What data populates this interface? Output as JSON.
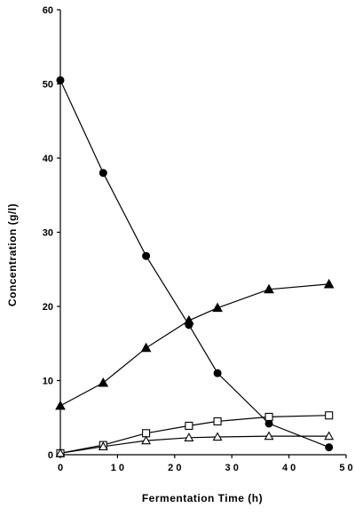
{
  "chart_data": {
    "type": "line",
    "title": "",
    "xlabel": "Fermentation  Time  (h)",
    "ylabel": "Concentration  (g/l)",
    "xlim": [
      0,
      50
    ],
    "ylim": [
      0,
      60
    ],
    "x_ticks": [
      0,
      10,
      20,
      30,
      40,
      50
    ],
    "y_ticks": [
      0,
      10,
      20,
      30,
      40,
      50,
      60
    ],
    "x_tick_labels": [
      "0",
      "1 0",
      "2 0",
      "3 0",
      "4 0",
      "5 0"
    ],
    "y_tick_labels": [
      "0",
      "10",
      "20",
      "30",
      "40",
      "50",
      "60"
    ],
    "grid": false,
    "legend": "none",
    "series": [
      {
        "marker": "filled-circle",
        "color": "#000000",
        "x": [
          0,
          7.5,
          15,
          22.5,
          27.5,
          36.5,
          47
        ],
        "y": [
          50.5,
          38,
          26.8,
          17.5,
          11,
          4.2,
          1
        ]
      },
      {
        "marker": "filled-triangle",
        "color": "#000000",
        "x": [
          0,
          7.5,
          15,
          22.5,
          27.5,
          36.5,
          47
        ],
        "y": [
          6.6,
          9.7,
          14.4,
          18.1,
          19.8,
          22.3,
          23
        ]
      },
      {
        "marker": "open-square",
        "color": "#000000",
        "x": [
          0,
          7.5,
          15,
          22.5,
          27.5,
          36.5,
          47
        ],
        "y": [
          0.2,
          1.3,
          2.9,
          3.9,
          4.5,
          5.1,
          5.3
        ]
      },
      {
        "marker": "open-triangle",
        "color": "#000000",
        "x": [
          0,
          7.5,
          15,
          22.5,
          27.5,
          36.5,
          47
        ],
        "y": [
          0.2,
          1.1,
          1.9,
          2.3,
          2.4,
          2.5,
          2.5
        ]
      }
    ]
  }
}
